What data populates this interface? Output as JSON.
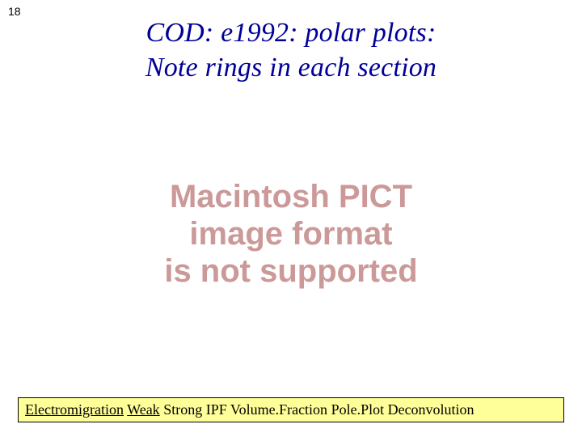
{
  "page_number": "18",
  "title_line1": "COD: e1992: polar plots:",
  "title_line2": "Note rings in each section",
  "title_color": "#000099",
  "error": {
    "line1": "Macintosh PICT",
    "line2": "image format",
    "line3": "is not supported",
    "color": "#cc9999"
  },
  "footer": {
    "background": "#ffff99",
    "items": [
      {
        "label": "Electromigration",
        "underline": true
      },
      {
        "label": "Weak",
        "underline": true
      },
      {
        "label": "Strong",
        "underline": false
      },
      {
        "label": "IPF",
        "underline": false
      },
      {
        "label": "Volume.Fraction",
        "underline": false
      },
      {
        "label": "Pole.Plot",
        "underline": false
      },
      {
        "label": "Deconvolution",
        "underline": false
      }
    ],
    "separator": "  "
  }
}
